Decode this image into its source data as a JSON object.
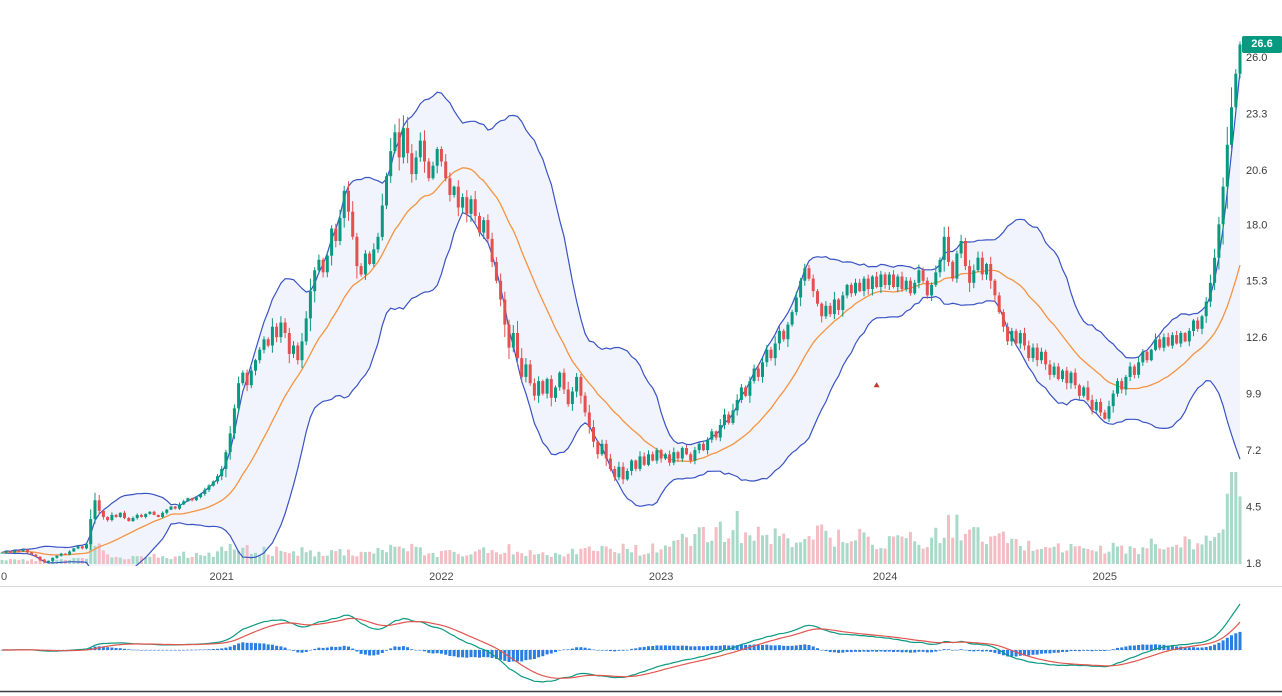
{
  "app": {
    "title": "Weekly candlestick chart with Bollinger Bands, volume and MACD"
  },
  "chart_data": {
    "type": "candlestick",
    "title": "",
    "last_price": "26.6",
    "x_axis": {
      "labels": [
        {
          "text": "0",
          "week": 0,
          "align": "start"
        },
        {
          "text": "2021",
          "week": 52,
          "align": "middle"
        },
        {
          "text": "2022",
          "week": 104,
          "align": "middle"
        },
        {
          "text": "2023",
          "week": 156,
          "align": "middle"
        },
        {
          "text": "2024",
          "week": 209,
          "align": "middle"
        },
        {
          "text": "2025",
          "week": 261,
          "align": "middle"
        }
      ]
    },
    "y_axis": {
      "ticks": [
        "26.0",
        "23.3",
        "20.6",
        "18.0",
        "15.3",
        "12.6",
        "9.9",
        "7.2",
        "4.5",
        "1.8"
      ],
      "min": 1.8,
      "max": 26.0
    },
    "closes": [
      2.3,
      2.35,
      2.3,
      2.4,
      2.35,
      2.45,
      2.3,
      2.2,
      2.1,
      1.95,
      1.85,
      1.9,
      2.05,
      2.15,
      2.25,
      2.2,
      2.35,
      2.5,
      2.6,
      2.5,
      2.7,
      3.9,
      4.8,
      4.3,
      4.0,
      3.85,
      4.1,
      4.0,
      4.2,
      3.95,
      3.8,
      3.95,
      4.1,
      4.0,
      4.15,
      4.25,
      4.1,
      4.0,
      4.2,
      4.35,
      4.5,
      4.4,
      4.6,
      4.75,
      4.9,
      4.8,
      4.95,
      5.1,
      5.3,
      5.5,
      5.7,
      5.95,
      6.3,
      7.1,
      8.0,
      9.2,
      10.4,
      10.9,
      10.3,
      11.0,
      11.5,
      12.0,
      12.5,
      12.2,
      13.1,
      12.6,
      13.3,
      12.8,
      11.8,
      12.2,
      11.5,
      12.4,
      13.5,
      14.8,
      15.8,
      16.3,
      15.7,
      16.5,
      17.8,
      17.2,
      18.3,
      19.6,
      18.6,
      17.4,
      16.0,
      15.6,
      16.6,
      16.1,
      16.8,
      17.4,
      18.9,
      20.3,
      21.5,
      22.4,
      21.2,
      22.6,
      21.4,
      20.4,
      21.2,
      22.0,
      21.0,
      20.2,
      20.8,
      21.6,
      21.0,
      20.2,
      19.4,
      19.8,
      18.8,
      19.3,
      18.5,
      19.2,
      18.4,
      17.6,
      18.2,
      17.3,
      16.2,
      15.3,
      14.4,
      13.2,
      12.1,
      12.8,
      11.6,
      10.7,
      11.3,
      10.4,
      9.8,
      10.5,
      9.9,
      10.6,
      9.7,
      10.2,
      10.9,
      10.1,
      9.4,
      10.0,
      10.7,
      9.8,
      9.0,
      8.3,
      7.6,
      7.0,
      7.5,
      6.8,
      6.3,
      5.9,
      6.4,
      5.8,
      6.2,
      6.7,
      6.3,
      6.9,
      6.5,
      7.0,
      6.7,
      7.2,
      6.8,
      7.0,
      6.6,
      7.1,
      6.8,
      7.3,
      7.0,
      6.7,
      7.2,
      7.5,
      7.2,
      7.7,
      8.1,
      7.8,
      8.4,
      8.9,
      8.5,
      9.1,
      9.6,
      10.2,
      9.8,
      10.5,
      11.1,
      10.7,
      11.4,
      12.0,
      11.6,
      12.3,
      12.9,
      12.5,
      13.2,
      13.8,
      14.5,
      15.3,
      15.9,
      15.4,
      14.8,
      14.2,
      13.6,
      14.1,
      13.7,
      14.4,
      13.9,
      14.6,
      15.1,
      14.7,
      15.2,
      14.8,
      15.4,
      14.9,
      15.5,
      15.0,
      15.6,
      15.1,
      15.6,
      15.0,
      15.5,
      14.9,
      15.3,
      14.7,
      15.2,
      15.8,
      15.3,
      14.6,
      15.1,
      15.7,
      16.3,
      17.4,
      16.2,
      15.4,
      16.6,
      17.2,
      16.0,
      15.2,
      15.8,
      16.4,
      15.6,
      16.1,
      15.3,
      14.6,
      13.8,
      13.1,
      12.4,
      12.9,
      12.3,
      12.8,
      12.2,
      11.6,
      12.1,
      11.5,
      11.9,
      11.3,
      10.8,
      11.2,
      10.6,
      11.0,
      10.4,
      10.9,
      10.3,
      9.8,
      10.2,
      9.6,
      9.1,
      9.5,
      9.0,
      8.7,
      9.3,
      9.9,
      10.5,
      10.1,
      10.7,
      11.2,
      10.8,
      11.4,
      11.9,
      11.5,
      12.0,
      12.5,
      12.1,
      12.6,
      12.2,
      12.7,
      12.3,
      12.8,
      12.4,
      12.9,
      13.4,
      13.0,
      13.6,
      14.3,
      15.2,
      16.4,
      18.0,
      19.8,
      21.8,
      23.6,
      25.2,
      26.6
    ],
    "volume_anchors": [
      [
        0,
        4
      ],
      [
        10,
        5
      ],
      [
        18,
        6
      ],
      [
        20,
        8
      ],
      [
        21,
        24
      ],
      [
        22,
        30
      ],
      [
        23,
        18
      ],
      [
        25,
        10
      ],
      [
        30,
        8
      ],
      [
        36,
        9
      ],
      [
        42,
        10
      ],
      [
        48,
        12
      ],
      [
        52,
        15
      ],
      [
        56,
        20
      ],
      [
        60,
        14
      ],
      [
        66,
        16
      ],
      [
        72,
        14
      ],
      [
        78,
        16
      ],
      [
        84,
        13
      ],
      [
        90,
        16
      ],
      [
        96,
        18
      ],
      [
        102,
        14
      ],
      [
        108,
        13
      ],
      [
        114,
        15
      ],
      [
        120,
        17
      ],
      [
        126,
        14
      ],
      [
        132,
        13
      ],
      [
        138,
        16
      ],
      [
        144,
        20
      ],
      [
        150,
        16
      ],
      [
        156,
        19
      ],
      [
        160,
        24
      ],
      [
        164,
        30
      ],
      [
        168,
        40
      ],
      [
        171,
        34
      ],
      [
        174,
        46
      ],
      [
        177,
        30
      ],
      [
        180,
        36
      ],
      [
        184,
        28
      ],
      [
        188,
        34
      ],
      [
        192,
        40
      ],
      [
        196,
        30
      ],
      [
        200,
        36
      ],
      [
        204,
        30
      ],
      [
        208,
        26
      ],
      [
        212,
        32
      ],
      [
        216,
        26
      ],
      [
        220,
        28
      ],
      [
        224,
        42
      ],
      [
        228,
        45
      ],
      [
        232,
        28
      ],
      [
        236,
        30
      ],
      [
        240,
        24
      ],
      [
        244,
        20
      ],
      [
        248,
        22
      ],
      [
        252,
        18
      ],
      [
        256,
        20
      ],
      [
        260,
        16
      ],
      [
        264,
        20
      ],
      [
        268,
        16
      ],
      [
        272,
        22
      ],
      [
        276,
        18
      ],
      [
        280,
        24
      ],
      [
        284,
        22
      ],
      [
        286,
        30
      ],
      [
        288,
        48
      ],
      [
        290,
        72
      ],
      [
        291,
        85
      ],
      [
        292,
        92
      ],
      [
        293,
        78
      ]
    ],
    "indicators": {
      "bollinger_bands": {
        "period": 20,
        "mult": 2,
        "basis_color": "#f59342",
        "band_color": "#3a53c4",
        "fill_color": "rgba(63,103,222,0.07)"
      },
      "macd": {
        "fast": 12,
        "slow": 26,
        "signal_period": 9,
        "macd_color": "#0a9a82",
        "signal_color": "#e0564f",
        "hist_color": "#2a7de1"
      }
    },
    "colors": {
      "up": "#089981",
      "down": "#e3504f",
      "vol_up": "#a9d9c9",
      "vol_down": "#f4bcc3",
      "axis_text": "#3c3c3c",
      "separator": "#d9d9d9",
      "bottom_border": "#3b3e45",
      "zero_line": "#c9c9c9"
    },
    "markers": [
      {
        "week": 207,
        "price": 10.3,
        "shape": "triangle-up",
        "color": "#c0392b"
      }
    ]
  }
}
